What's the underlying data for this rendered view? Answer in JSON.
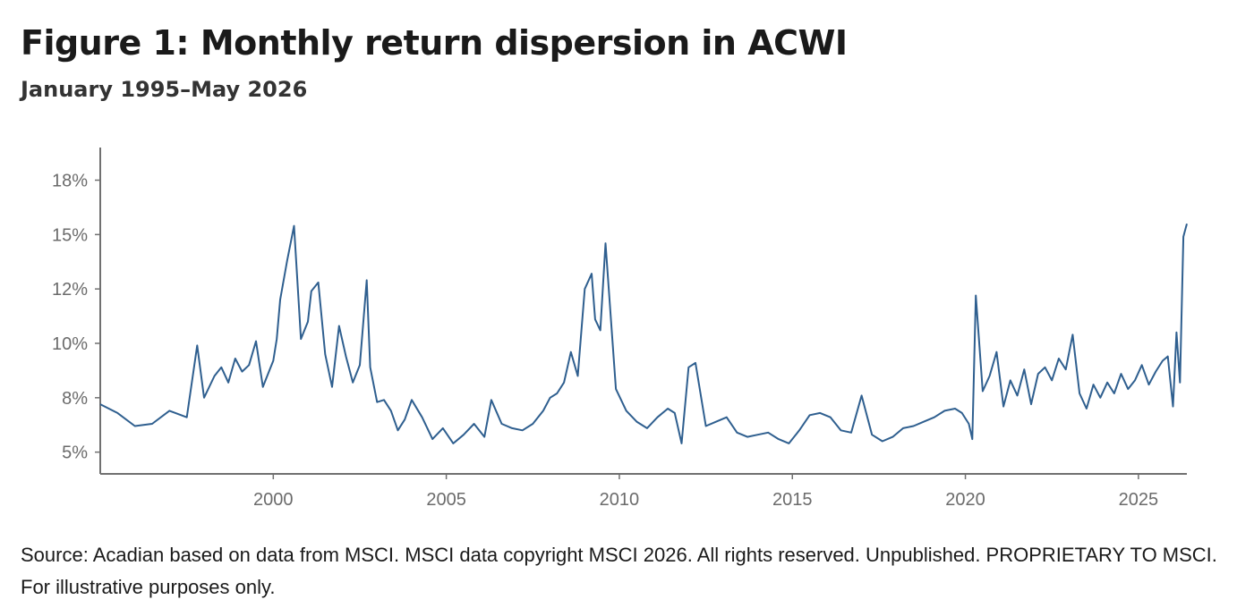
{
  "figure": {
    "title": "Figure 1: Monthly return dispersion in ACWI",
    "subtitle": "January 1995–May 2026",
    "source": "Source: Acadian based on data from MSCI. MSCI data copyright MSCI 2026. All rights reserved. Unpublished. PROPRIETARY TO MSCI. For illustrative purposes only."
  },
  "colors": {
    "line": "#2f5f8f",
    "axis": "#707070",
    "tick_text": "#6b6b6b"
  },
  "chart_data": {
    "type": "line",
    "title": "Figure 1: Monthly return dispersion in ACWI",
    "subtitle": "January 1995–May 2026",
    "xlabel": "",
    "ylabel": "",
    "xlim": [
      1995.0,
      2026.4
    ],
    "ylim": [
      4,
      19
    ],
    "x_ticks": [
      2000,
      2005,
      2010,
      2015,
      2020,
      2025
    ],
    "x_tick_labels": [
      "2000",
      "2005",
      "2010",
      "2015",
      "2020",
      "2025"
    ],
    "y_ticks": [
      5,
      7.5,
      10,
      12.5,
      15,
      17.5
    ],
    "y_tick_labels": [
      "5%",
      "8%",
      "10%",
      "12%",
      "15%",
      "18%"
    ],
    "grid": false,
    "legend": "none",
    "series": [
      {
        "x": [
          1995.0,
          1995.5,
          1996.0,
          1996.5,
          1997.0,
          1997.5,
          1997.8,
          1998.0,
          1998.3,
          1998.5,
          1998.7,
          1998.9,
          1999.1,
          1999.3,
          1999.5,
          1999.7,
          1999.9,
          2000.0,
          2000.1,
          2000.2,
          2000.4,
          2000.6,
          2000.8,
          2001.0,
          2001.1,
          2001.3,
          2001.5,
          2001.7,
          2001.9,
          2002.1,
          2002.3,
          2002.5,
          2002.7,
          2002.8,
          2003.0,
          2003.2,
          2003.4,
          2003.6,
          2003.8,
          2004.0,
          2004.3,
          2004.6,
          2004.9,
          2005.2,
          2005.5,
          2005.8,
          2006.1,
          2006.3,
          2006.6,
          2006.9,
          2007.2,
          2007.5,
          2007.8,
          2008.0,
          2008.2,
          2008.4,
          2008.6,
          2008.8,
          2009.0,
          2009.2,
          2009.3,
          2009.45,
          2009.6,
          2009.9,
          2010.2,
          2010.5,
          2010.8,
          2011.1,
          2011.4,
          2011.6,
          2011.8,
          2012.0,
          2012.2,
          2012.5,
          2012.8,
          2013.1,
          2013.4,
          2013.7,
          2014.0,
          2014.3,
          2014.6,
          2014.9,
          2015.2,
          2015.5,
          2015.8,
          2016.1,
          2016.4,
          2016.7,
          2017.0,
          2017.3,
          2017.6,
          2017.9,
          2018.2,
          2018.5,
          2018.8,
          2019.1,
          2019.4,
          2019.7,
          2019.9,
          2020.1,
          2020.2,
          2020.3,
          2020.5,
          2020.7,
          2020.9,
          2021.1,
          2021.3,
          2021.5,
          2021.7,
          2021.9,
          2022.1,
          2022.3,
          2022.5,
          2022.7,
          2022.9,
          2023.1,
          2023.3,
          2023.5,
          2023.7,
          2023.9,
          2024.1,
          2024.3,
          2024.5,
          2024.7,
          2024.9,
          2025.1,
          2025.3,
          2025.5,
          2025.7,
          2025.85,
          2026.0,
          2026.1,
          2026.2,
          2026.3,
          2026.4
        ],
        "values": [
          7.2,
          6.8,
          6.2,
          6.3,
          6.9,
          6.6,
          9.9,
          7.5,
          8.5,
          8.9,
          8.2,
          9.3,
          8.7,
          9.0,
          10.1,
          8.0,
          8.8,
          9.2,
          10.2,
          12.0,
          13.8,
          15.4,
          10.2,
          11.0,
          12.4,
          12.8,
          9.5,
          8.0,
          10.8,
          9.4,
          8.2,
          9.0,
          12.9,
          8.9,
          7.3,
          7.4,
          6.9,
          6.0,
          6.5,
          7.4,
          6.6,
          5.6,
          6.1,
          5.4,
          5.8,
          6.3,
          5.7,
          7.4,
          6.3,
          6.1,
          6.0,
          6.3,
          6.9,
          7.5,
          7.7,
          8.2,
          9.6,
          8.5,
          12.5,
          13.2,
          11.1,
          10.6,
          14.6,
          7.9,
          6.9,
          6.4,
          6.1,
          6.6,
          7.0,
          6.8,
          5.4,
          8.9,
          9.1,
          6.2,
          6.4,
          6.6,
          5.9,
          5.7,
          5.8,
          5.9,
          5.6,
          5.4,
          6.0,
          6.7,
          6.8,
          6.6,
          6.0,
          5.9,
          7.6,
          5.8,
          5.5,
          5.7,
          6.1,
          6.2,
          6.4,
          6.6,
          6.9,
          7.0,
          6.8,
          6.3,
          5.6,
          12.2,
          7.8,
          8.5,
          9.6,
          7.1,
          8.3,
          7.6,
          8.8,
          7.2,
          8.6,
          8.9,
          8.3,
          9.3,
          8.8,
          10.4,
          7.7,
          7.0,
          8.1,
          7.5,
          8.2,
          7.7,
          8.6,
          7.9,
          8.3,
          9.0,
          8.1,
          8.7,
          9.2,
          9.4,
          7.1,
          10.5,
          8.2,
          14.9,
          15.5
        ]
      }
    ]
  }
}
